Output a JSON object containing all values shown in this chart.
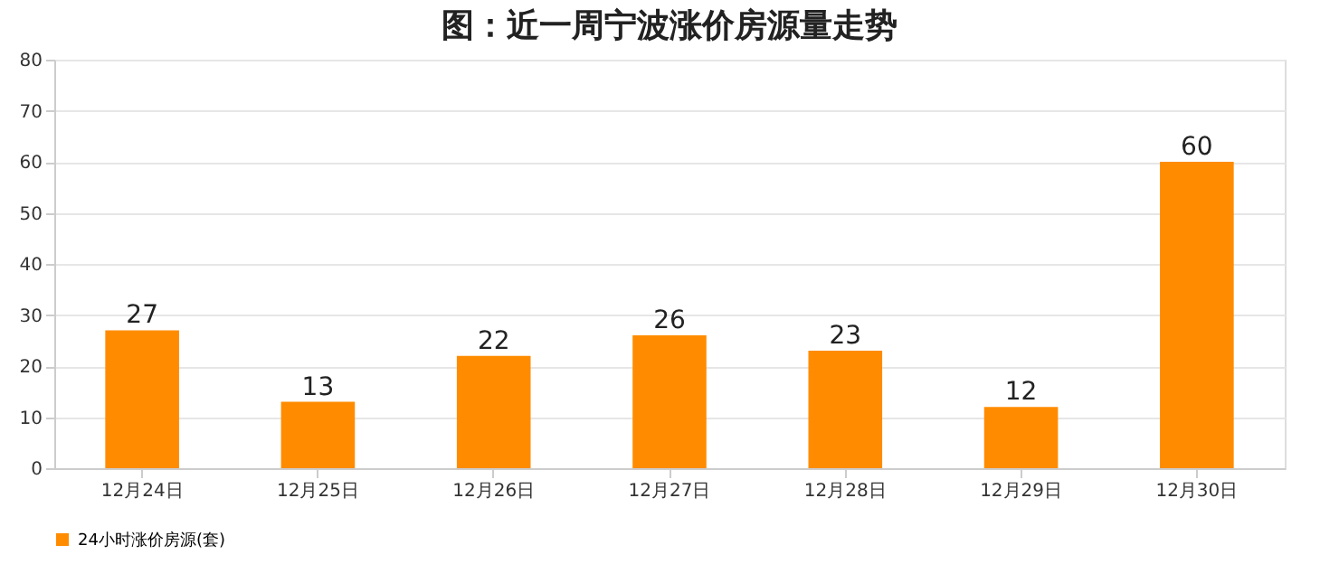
{
  "chart_data": {
    "type": "bar",
    "title": "图：近一周宁波涨价房源量走势",
    "categories": [
      "12月24日",
      "12月25日",
      "12月26日",
      "12月27日",
      "12月28日",
      "12月29日",
      "12月30日"
    ],
    "series": [
      {
        "name": "24小时涨价房源(套)",
        "color": "#ff8c00",
        "values": [
          27,
          13,
          22,
          26,
          23,
          12,
          60
        ]
      }
    ],
    "ylim": [
      0,
      80
    ],
    "yticks": [
      0,
      10,
      20,
      30,
      40,
      50,
      60,
      70,
      80
    ],
    "grid": "y",
    "legend": "bottom",
    "data_labels": true
  }
}
